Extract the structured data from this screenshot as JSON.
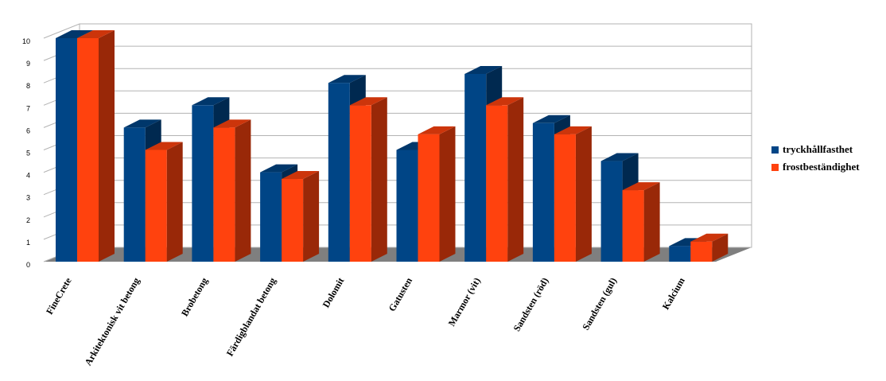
{
  "chart_data": {
    "type": "bar3d",
    "categories": [
      "FineCrete",
      "Arkitektonisk vit betong",
      "Brobetong",
      "Färdigblandat betong",
      "Dolomit",
      "Gatusten",
      "Marmor (vit)",
      "Sandsten (röd)",
      "Sandsten (gul)",
      "Kalcium"
    ],
    "series": [
      {
        "name": "tryckhållfasthet",
        "color": "#004586",
        "values": [
          10,
          6,
          7,
          4,
          8,
          5,
          8.4,
          6.2,
          4.5,
          0.7
        ]
      },
      {
        "name": "frostbeständighet",
        "color": "#ff420e",
        "values": [
          10,
          5,
          6,
          3.7,
          7,
          5.7,
          7,
          5.7,
          3.2,
          0.9
        ]
      }
    ],
    "ylim": [
      0,
      10
    ],
    "yticks": [
      0,
      1,
      2,
      3,
      4,
      5,
      6,
      7,
      8,
      9,
      10
    ],
    "grid": true,
    "legend": "right"
  }
}
